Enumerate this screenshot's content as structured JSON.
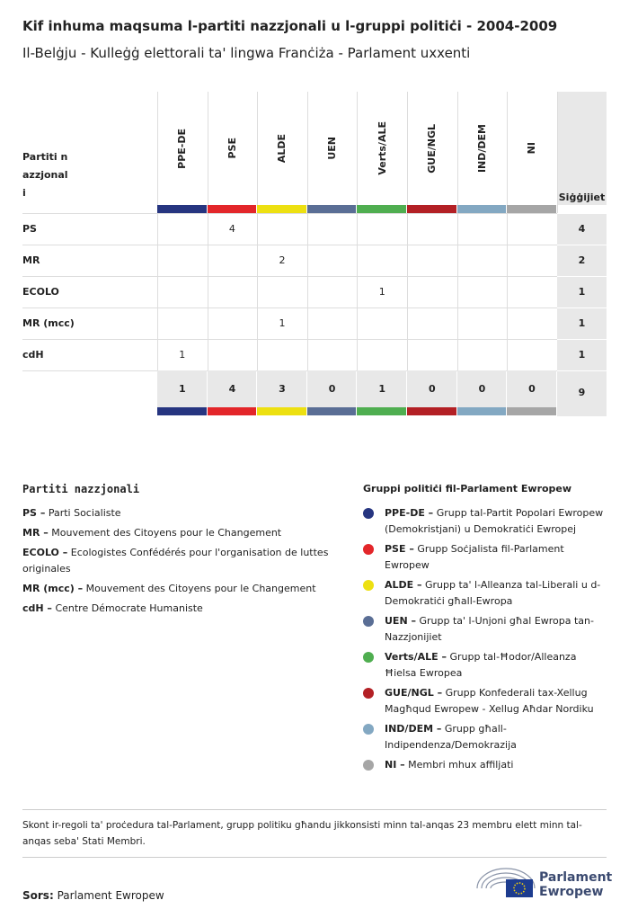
{
  "header": {
    "title": "Kif inhuma maqsuma l-partiti nazzjonali u l-gruppi politiċi - 2004-2009",
    "subtitle": "Il-Belġju - Kulleġġ elettorali ta' lingwa Franċiża - Parlament uxxenti"
  },
  "table": {
    "corner_label": "Partiti nazzjonali",
    "total_label": "Siġġijiet",
    "groups": [
      {
        "name": "PPE-DE",
        "color": "#263580"
      },
      {
        "name": "PSE",
        "color": "#e3262a"
      },
      {
        "name": "ALDE",
        "color": "#ede011"
      },
      {
        "name": "UEN",
        "color": "#5a6e95"
      },
      {
        "name": "Verts/ALE",
        "color": "#4fae50"
      },
      {
        "name": "GUE/NGL",
        "color": "#b32025"
      },
      {
        "name": "IND/DEM",
        "color": "#83a8c2"
      },
      {
        "name": "NI",
        "color": "#a6a6a6"
      }
    ],
    "rows": [
      {
        "party": "PS",
        "cells": [
          null,
          4,
          null,
          null,
          null,
          null,
          null,
          null
        ],
        "total": 4
      },
      {
        "party": "MR",
        "cells": [
          null,
          null,
          2,
          null,
          null,
          null,
          null,
          null
        ],
        "total": 2
      },
      {
        "party": "ECOLO",
        "cells": [
          null,
          null,
          null,
          null,
          1,
          null,
          null,
          null
        ],
        "total": 1
      },
      {
        "party": "MR (mcc)",
        "cells": [
          null,
          null,
          1,
          null,
          null,
          null,
          null,
          null
        ],
        "total": 1
      },
      {
        "party": "cdH",
        "cells": [
          1,
          null,
          null,
          null,
          null,
          null,
          null,
          null
        ],
        "total": 1
      }
    ],
    "totals": [
      1,
      4,
      3,
      0,
      1,
      0,
      0,
      0
    ],
    "grand_total": 9
  },
  "legend_parties": {
    "title": "Partiti nazzjonali",
    "items": [
      {
        "abbr": "PS –",
        "name": "Parti Socialiste"
      },
      {
        "abbr": "MR –",
        "name": "Mouvement des Citoyens pour le Changement"
      },
      {
        "abbr": "ECOLO –",
        "name": "Ecologistes Confédérés pour l'organisation de luttes originales"
      },
      {
        "abbr": "MR (mcc) –",
        "name": "Mouvement des Citoyens pour le Changement"
      },
      {
        "abbr": "cdH –",
        "name": "Centre Démocrate Humaniste"
      }
    ]
  },
  "legend_groups": {
    "title": "Gruppi politiċi fil-Parlament Ewropew",
    "items": [
      {
        "abbr": "PPE-DE –",
        "name": "Grupp tal-Partit Popolari Ewropew (Demokristjani) u Demokratiċi Ewropej"
      },
      {
        "abbr": "PSE –",
        "name": "Grupp Soċjalista fil-Parlament Ewropew"
      },
      {
        "abbr": "ALDE –",
        "name": "Grupp ta' l-Alleanza tal-Liberali u d-Demokratiċi għall-Ewropa"
      },
      {
        "abbr": "UEN –",
        "name": "Grupp ta' l-Unjoni għal Ewropa tan-Nazzjonijiet"
      },
      {
        "abbr": "Verts/ALE –",
        "name": "Grupp tal-Ħodor/Alleanza Ħielsa Ewropea"
      },
      {
        "abbr": "GUE/NGL –",
        "name": "Grupp Konfederali tax-Xellug Magħqud Ewropew - Xellug Aħdar Nordiku"
      },
      {
        "abbr": "IND/DEM –",
        "name": "Grupp għall-Indipendenza/Demokrazija"
      },
      {
        "abbr": "NI –",
        "name": "Membri mhux affiljati"
      }
    ]
  },
  "footnote": "Skont ir-regoli ta' proċedura tal-Parlament, grupp politiku għandu jikkonsisti minn tal-anqas 23 membru elett minn tal-anqas seba' Stati Membri.",
  "source": {
    "label": "Sors:",
    "text": "Parlament Ewropew"
  },
  "logo": {
    "line1": "Parlament",
    "line2": "Ewropew"
  }
}
